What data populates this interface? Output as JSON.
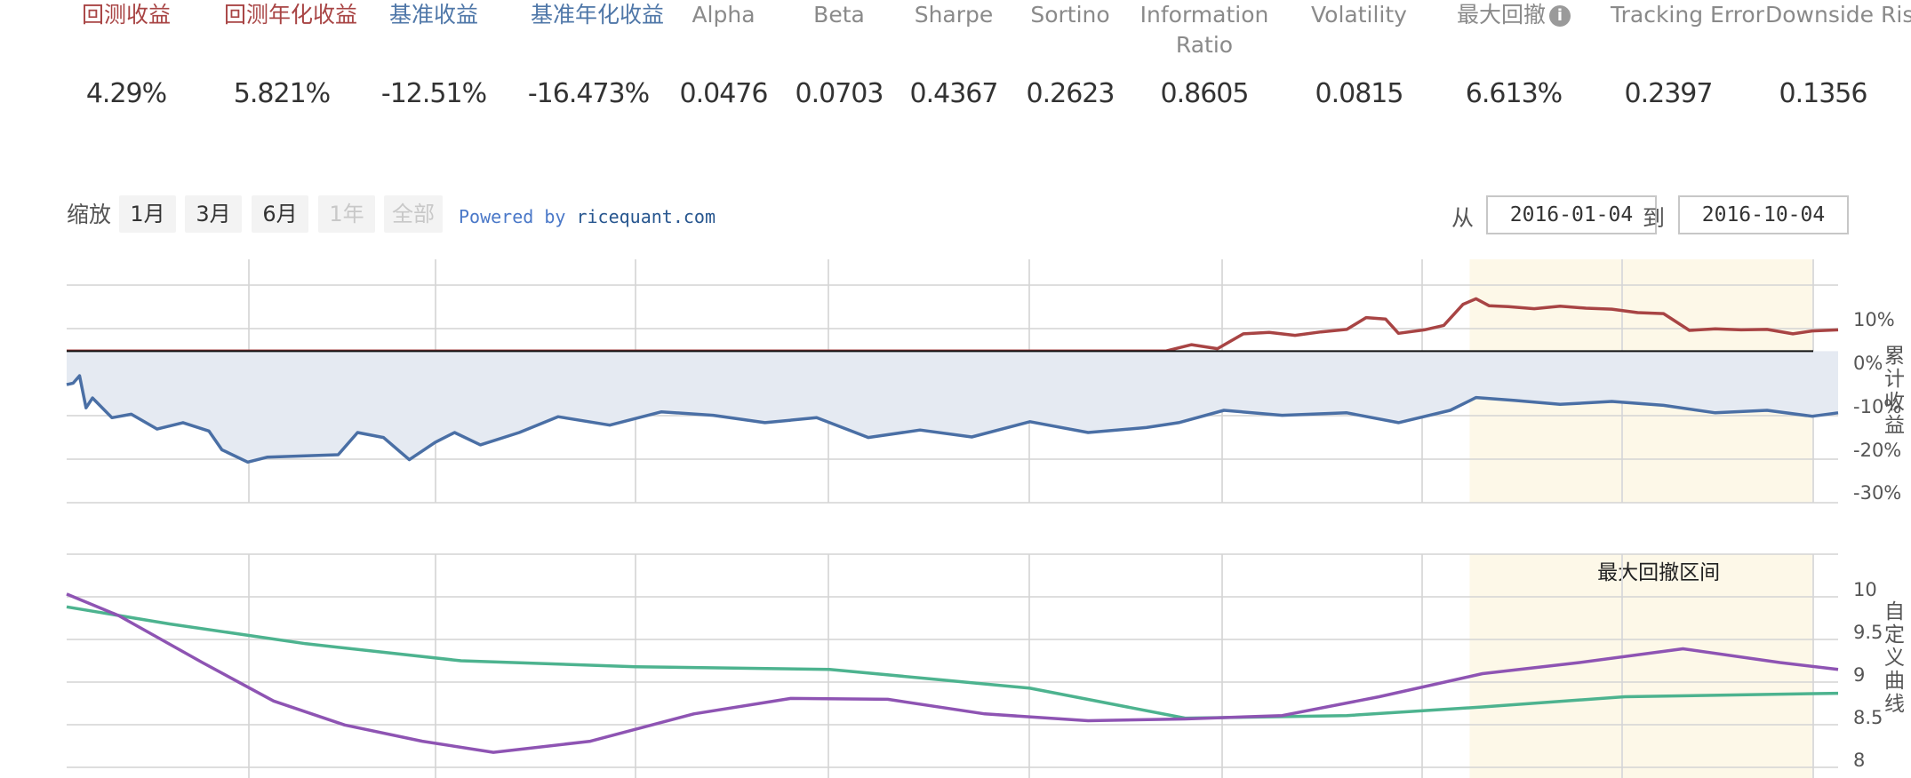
{
  "metrics": [
    {
      "name": "回测收益",
      "value": "4.29%",
      "color": "#a84444"
    },
    {
      "name": "回测年化收益",
      "value": "5.821%",
      "color": "#a84444"
    },
    {
      "name": "基准收益",
      "value": "-12.51%",
      "color": "#4f77a8"
    },
    {
      "name": "基准年化收益",
      "value": "-16.473%",
      "color": "#4f77a8"
    },
    {
      "name": "Alpha",
      "value": "0.0476"
    },
    {
      "name": "Beta",
      "value": "0.0703"
    },
    {
      "name": "Sharpe",
      "value": "0.4367"
    },
    {
      "name": "Sortino",
      "value": "0.2623"
    },
    {
      "name": "Information Ratio",
      "value": "0.8605"
    },
    {
      "name": "Volatility",
      "value": "0.0815"
    },
    {
      "name": "最大回撤",
      "value": "6.613%",
      "icon": "info-icon"
    },
    {
      "name": "Tracking Error",
      "value": "0.2397"
    },
    {
      "name": "Downside Risk",
      "value": "0.1356"
    }
  ],
  "toolbar": {
    "zoom_label": "缩放",
    "zoom_buttons": [
      "1月",
      "3月",
      "6月",
      "1年",
      "全部"
    ],
    "disabled_buttons": [
      "1年",
      "全部"
    ],
    "powered_prefix": "Powered by ",
    "powered_site": "ricequant.com",
    "from_label": "从",
    "from_date": "2016-01-04",
    "to_label": "到",
    "to_date": "2016-10-04"
  },
  "chart_data": [
    {
      "type": "area",
      "ylabel": "累计收益",
      "yticks": [
        "10%",
        "0%",
        "-10%",
        "-20%",
        "-30%"
      ],
      "ylim": [
        -30,
        15
      ],
      "xlim": [
        "2016-01-04",
        "2016-10-04"
      ],
      "highlight_band": {
        "from": "2016-08-08",
        "to": "2016-09-30"
      },
      "series": [
        {
          "color": "#a84444",
          "x": [
            "2016-01-04",
            "2016-06-22",
            "2016-06-26",
            "2016-06-30",
            "2016-07-04",
            "2016-07-08",
            "2016-07-12",
            "2016-07-16",
            "2016-07-20",
            "2016-07-23",
            "2016-07-26",
            "2016-07-28",
            "2016-08-01",
            "2016-08-04",
            "2016-08-07",
            "2016-08-09",
            "2016-08-11",
            "2016-08-14",
            "2016-08-18",
            "2016-08-22",
            "2016-08-26",
            "2016-08-30",
            "2016-09-03",
            "2016-09-07",
            "2016-09-11",
            "2016-09-15",
            "2016-09-19",
            "2016-09-23",
            "2016-09-27",
            "2016-09-30",
            "2016-10-04"
          ],
          "values": [
            0,
            0,
            1.3,
            0.5,
            3.5,
            3.8,
            3.2,
            3.9,
            4.4,
            6.8,
            6.5,
            3.6,
            4.3,
            5.2,
            9.5,
            10.6,
            9.2,
            9.0,
            8.6,
            9.1,
            8.7,
            8.5,
            7.8,
            7.6,
            4.2,
            4.5,
            4.3,
            4.4,
            3.5,
            4.1,
            4.3
          ]
        },
        {
          "color": "#4a6fa5",
          "fill": "#e5eaf2",
          "x": [
            "2016-01-04",
            "2016-01-05",
            "2016-01-06",
            "2016-01-07",
            "2016-01-08",
            "2016-01-11",
            "2016-01-14",
            "2016-01-18",
            "2016-01-22",
            "2016-01-26",
            "2016-01-28",
            "2016-02-01",
            "2016-02-04",
            "2016-02-15",
            "2016-02-18",
            "2016-02-22",
            "2016-02-26",
            "2016-03-01",
            "2016-03-04",
            "2016-03-08",
            "2016-03-14",
            "2016-03-20",
            "2016-03-28",
            "2016-04-05",
            "2016-04-13",
            "2016-04-21",
            "2016-04-29",
            "2016-05-07",
            "2016-05-15",
            "2016-05-23",
            "2016-06-01",
            "2016-06-10",
            "2016-06-19",
            "2016-06-24",
            "2016-07-01",
            "2016-07-10",
            "2016-07-20",
            "2016-07-28",
            "2016-08-05",
            "2016-08-09",
            "2016-08-15",
            "2016-08-22",
            "2016-08-30",
            "2016-09-07",
            "2016-09-15",
            "2016-09-23",
            "2016-09-30",
            "2016-10-04"
          ],
          "values": [
            -6.8,
            -6.5,
            -5.0,
            -11.5,
            -9.5,
            -13.5,
            -12.8,
            -15.8,
            -14.5,
            -16.2,
            -20.0,
            -22.5,
            -21.5,
            -21.0,
            -16.5,
            -17.5,
            -22.0,
            -18.5,
            -16.5,
            -19.0,
            -16.5,
            -13.3,
            -15.0,
            -12.3,
            -13.0,
            -14.5,
            -13.5,
            -17.5,
            -16.0,
            -17.4,
            -14.3,
            -16.5,
            -15.5,
            -14.5,
            -12.0,
            -13.0,
            -12.5,
            -14.5,
            -12.0,
            -9.4,
            -10.0,
            -10.8,
            -10.2,
            -11.0,
            -12.5,
            -12.0,
            -13.2,
            -12.5
          ]
        }
      ]
    },
    {
      "type": "line",
      "ylabel": "自定义曲线",
      "yticks": [
        "10",
        "9.5",
        "9",
        "8.5",
        "8"
      ],
      "ylim": [
        7.95,
        10.4
      ],
      "xlim": [
        "2016-01-04",
        "2016-10-04"
      ],
      "highlight_band": {
        "from": "2016-08-08",
        "to": "2016-09-30",
        "label": "最大回撤区间"
      },
      "series": [
        {
          "color": "#4db38f",
          "x": [
            "2016-01-04",
            "2016-01-20",
            "2016-02-10",
            "2016-03-05",
            "2016-04-01",
            "2016-05-01",
            "2016-06-01",
            "2016-06-25",
            "2016-07-20",
            "2016-08-10",
            "2016-09-01",
            "2016-10-04"
          ],
          "values": [
            9.95,
            9.75,
            9.52,
            9.32,
            9.25,
            9.22,
            9.0,
            8.65,
            8.68,
            8.78,
            8.9,
            8.94
          ]
        },
        {
          "color": "#8e54b3",
          "x": [
            "2016-01-04",
            "2016-01-12",
            "2016-01-25",
            "2016-02-05",
            "2016-02-16",
            "2016-02-28",
            "2016-03-10",
            "2016-03-25",
            "2016-04-10",
            "2016-04-25",
            "2016-05-10",
            "2016-05-25",
            "2016-06-10",
            "2016-06-25",
            "2016-07-10",
            "2016-07-25",
            "2016-08-10",
            "2016-08-25",
            "2016-09-10",
            "2016-09-25",
            "2016-10-04"
          ],
          "values": [
            10.1,
            9.85,
            9.3,
            8.85,
            8.57,
            8.38,
            8.25,
            8.38,
            8.7,
            8.88,
            8.87,
            8.7,
            8.62,
            8.64,
            8.68,
            8.9,
            9.17,
            9.3,
            9.46,
            9.3,
            9.22
          ]
        }
      ]
    }
  ]
}
